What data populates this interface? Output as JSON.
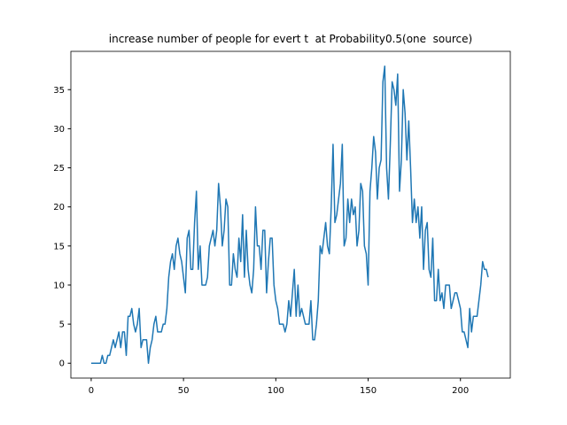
{
  "chart_data": {
    "type": "line",
    "title": "increase number of people for evert t  at Probability0.5(one  source)",
    "series": [
      {
        "color": "#1f77b4",
        "values": [
          0,
          0,
          0,
          0,
          0,
          0,
          1,
          0,
          0,
          1,
          1,
          2,
          3,
          2,
          3,
          4,
          2,
          4,
          4,
          1,
          6,
          6,
          7,
          5,
          4,
          5,
          7,
          2,
          3,
          3,
          3,
          0,
          2,
          3,
          5,
          6,
          4,
          4,
          4,
          5,
          5,
          7,
          11,
          13,
          14,
          12,
          15,
          16,
          14,
          13,
          11,
          9,
          16,
          17,
          12,
          12,
          18,
          22,
          12,
          15,
          10,
          10,
          10,
          11,
          15,
          16,
          17,
          15,
          17,
          23,
          20,
          15,
          17,
          21,
          20,
          10,
          10,
          14,
          12,
          11,
          16,
          13,
          19,
          11,
          17,
          12,
          10,
          9,
          12,
          20,
          15,
          15,
          12,
          17,
          17,
          9,
          13,
          16,
          16,
          10,
          8,
          7,
          5,
          5,
          5,
          4,
          5,
          8,
          6,
          9,
          12,
          6,
          10,
          6,
          7,
          6,
          5,
          5,
          5,
          8,
          3,
          3,
          5,
          8,
          15,
          14,
          16,
          18,
          15,
          14,
          20,
          28,
          18,
          19,
          21,
          23,
          28,
          15,
          16,
          21,
          18,
          21,
          19,
          20,
          15,
          17,
          23,
          22,
          15,
          14,
          10,
          22,
          25,
          29,
          27,
          21,
          25,
          26,
          36,
          38,
          25,
          21,
          28,
          36,
          35,
          33,
          37,
          22,
          26,
          35,
          32,
          26,
          31,
          25,
          18,
          21,
          18,
          20,
          16,
          20,
          12,
          17,
          18,
          12,
          11,
          16,
          8,
          8,
          12,
          8,
          9,
          7,
          10,
          10,
          10,
          7,
          8,
          9,
          9,
          8,
          7,
          4,
          4,
          3,
          2,
          7,
          4,
          6,
          6,
          6,
          8,
          10,
          13,
          12,
          12,
          11
        ]
      }
    ],
    "xlim": [
      -11,
      227
    ],
    "ylim": [
      -1.9,
      39.9
    ],
    "xticks": [
      0,
      50,
      100,
      150,
      200
    ],
    "yticks": [
      0,
      5,
      10,
      15,
      20,
      25,
      30,
      35
    ]
  }
}
